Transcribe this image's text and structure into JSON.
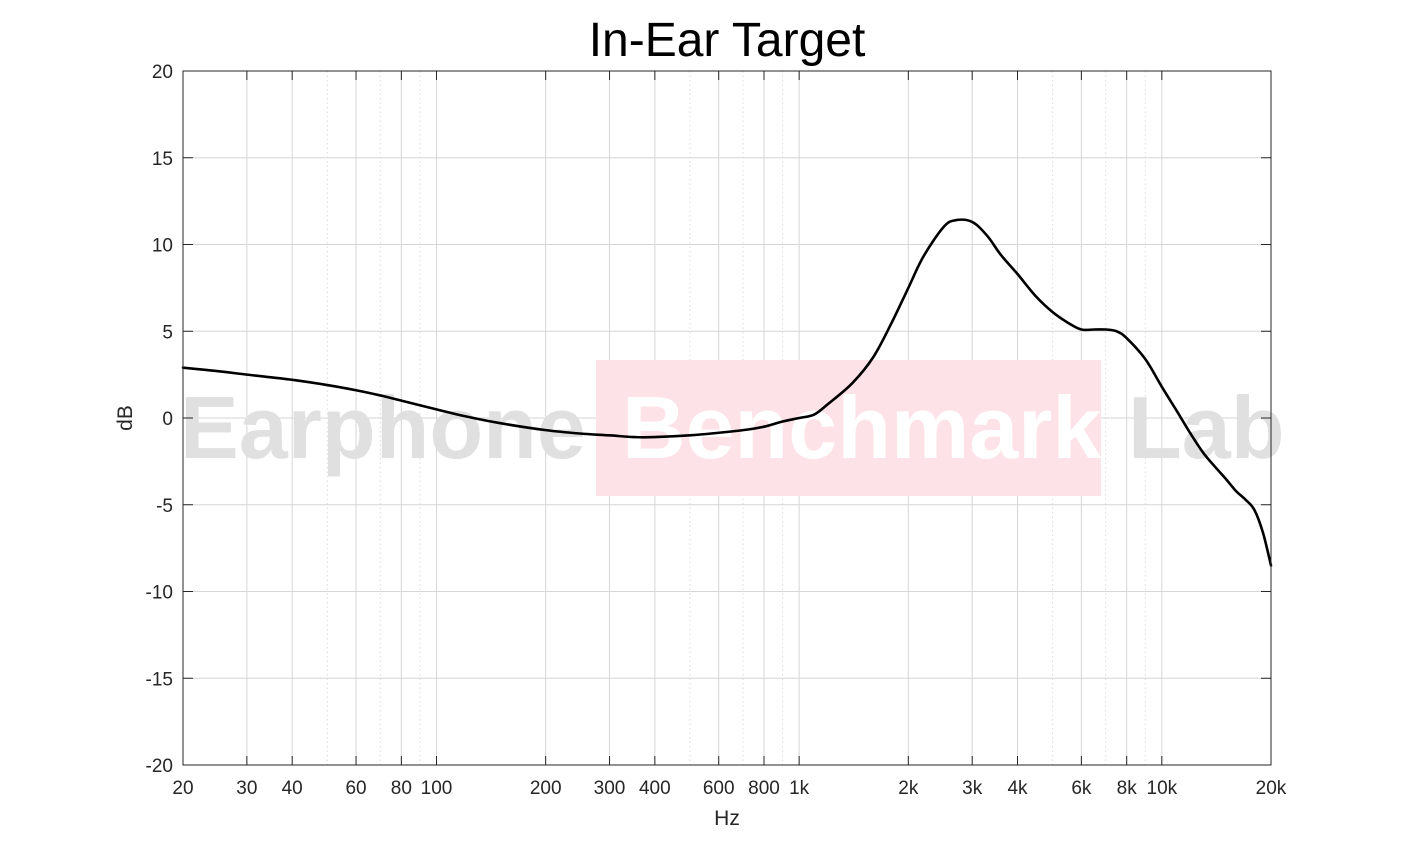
{
  "chart_data": {
    "type": "line",
    "title": "In-Ear Target",
    "xlabel": "Hz",
    "ylabel": "dB",
    "xscale": "log",
    "xlim": [
      20,
      20000
    ],
    "ylim": [
      -20,
      20
    ],
    "grid": true,
    "x_ticks": [
      20,
      30,
      40,
      60,
      80,
      100,
      200,
      300,
      400,
      600,
      800,
      1000,
      2000,
      3000,
      4000,
      6000,
      8000,
      10000,
      20000
    ],
    "x_tick_labels": [
      "20",
      "30",
      "40",
      "60",
      "80",
      "100",
      "200",
      "300",
      "400",
      "600",
      "800",
      "1k",
      "2k",
      "3k",
      "4k",
      "6k",
      "8k",
      "10k",
      "20k"
    ],
    "y_ticks": [
      20,
      15,
      10,
      5,
      0,
      -5,
      -10,
      -15,
      -20
    ],
    "y_tick_labels": [
      "20",
      "15",
      "10",
      "5",
      "0",
      "-5",
      "-10",
      "-15",
      "-20"
    ],
    "series": [
      {
        "color": "#000000",
        "x": [
          20,
          25,
          30,
          40,
          50,
          60,
          70,
          80,
          100,
          120,
          150,
          200,
          250,
          300,
          350,
          400,
          500,
          600,
          700,
          800,
          900,
          1000,
          1100,
          1200,
          1400,
          1600,
          1800,
          2000,
          2200,
          2500,
          2700,
          3000,
          3300,
          3600,
          4000,
          4500,
          5000,
          5500,
          6000,
          6500,
          7000,
          7500,
          8000,
          9000,
          10000,
          11000,
          12000,
          13000,
          14000,
          15000,
          16000,
          17000,
          18000,
          19000,
          20000
        ],
        "y": [
          2.9,
          2.7,
          2.5,
          2.2,
          1.9,
          1.6,
          1.3,
          1.0,
          0.5,
          0.1,
          -0.3,
          -0.7,
          -0.9,
          -1.0,
          -1.1,
          -1.1,
          -1.0,
          -0.85,
          -0.7,
          -0.5,
          -0.2,
          0.0,
          0.2,
          0.8,
          2.0,
          3.5,
          5.5,
          7.5,
          9.3,
          11.0,
          11.4,
          11.3,
          10.5,
          9.4,
          8.3,
          7.0,
          6.1,
          5.5,
          5.1,
          5.1,
          5.1,
          5.0,
          4.6,
          3.4,
          1.8,
          0.4,
          -0.9,
          -2.0,
          -2.8,
          -3.5,
          -4.2,
          -4.7,
          -5.3,
          -6.6,
          -8.5
        ]
      }
    ]
  },
  "watermark": {
    "word1": "Earphone",
    "word2": "Benchmark",
    "word3": "Lab",
    "grey": "#e0e0e0",
    "pink": "#fde3e7",
    "white": "#ffffff"
  }
}
